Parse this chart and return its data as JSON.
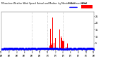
{
  "bg_color": "#ffffff",
  "bar_color": "#ff0000",
  "dot_color": "#0000ff",
  "n_minutes": 1440,
  "ylim": [
    0,
    28
  ],
  "yticks": [
    5,
    10,
    15,
    20,
    25
  ],
  "vline_color": "#aaaaaa",
  "vline_positions": [
    480,
    720,
    960
  ],
  "legend_actual_color": "#ff0000",
  "legend_median_color": "#0000ff",
  "tick_fontsize": 2.5,
  "xtick_fontsize": 1.8
}
